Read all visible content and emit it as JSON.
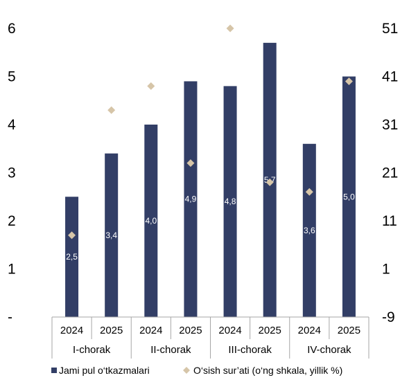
{
  "chart_data": {
    "type": "bar",
    "x_years": [
      "2024",
      "2025",
      "2024",
      "2025",
      "2024",
      "2025",
      "2024",
      "2025"
    ],
    "groups": [
      {
        "label": "I-chorak",
        "span": 2
      },
      {
        "label": "II-chorak",
        "span": 2
      },
      {
        "label": "III-chorak",
        "span": 2
      },
      {
        "label": "IV-chorak",
        "span": 2
      }
    ],
    "series": [
      {
        "name": "Jami pul o‘tkazmalari",
        "type": "bar",
        "axis": "left",
        "color": "#323e66",
        "values": [
          2.5,
          3.4,
          4.0,
          4.9,
          4.8,
          5.7,
          3.6,
          5.0
        ],
        "labels": [
          "2,5",
          "3,4",
          "4,0",
          "4,9",
          "4,8",
          "5,7",
          "3,6",
          "5,0"
        ]
      },
      {
        "name": "O‘sish sur’ati (o‘ng shkala, yillik %)",
        "type": "scatter",
        "marker": "diamond",
        "axis": "right",
        "color": "#d6c5a8",
        "values": [
          8,
          34,
          39,
          23,
          51,
          19,
          17,
          40
        ]
      }
    ],
    "y_left": {
      "min": 0,
      "max": 6,
      "ticks": [
        "-",
        "1",
        "2",
        "3",
        "4",
        "5",
        "6"
      ]
    },
    "y_right": {
      "min": -9,
      "max": 51,
      "ticks": [
        "-9",
        "1",
        "11",
        "21",
        "31",
        "41",
        "51"
      ]
    },
    "grid": false,
    "legend_position": "bottom"
  }
}
